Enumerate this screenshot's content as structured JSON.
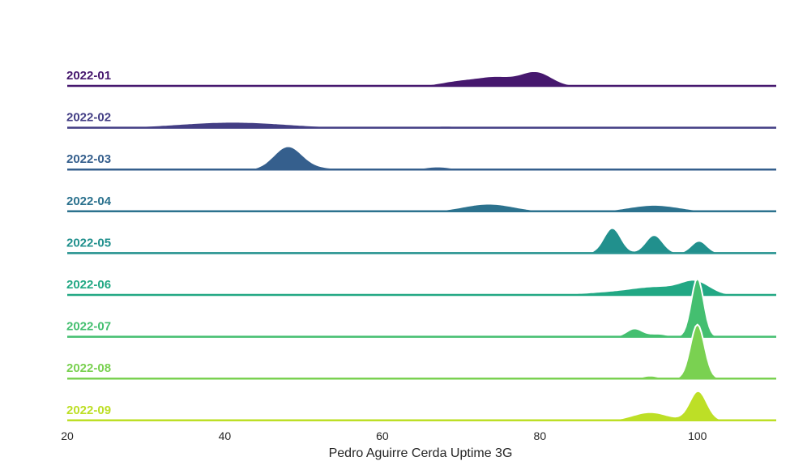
{
  "chart_data": {
    "type": "area",
    "subtype": "ridgeline",
    "xlabel": "Pedro Aguirre Cerda Uptime 3G",
    "xlim": [
      20,
      110
    ],
    "x_ticks": [
      20,
      40,
      60,
      80,
      100
    ],
    "grid": false,
    "series": [
      {
        "name": "2022-01",
        "color": "#46186e",
        "peaks": [
          {
            "x": 70,
            "height": 0.18,
            "width": 2.5
          },
          {
            "x": 74.5,
            "height": 0.28,
            "width": 2.2
          },
          {
            "x": 79.5,
            "height": 0.48,
            "width": 2.0
          },
          {
            "x": 95,
            "height": 0.03,
            "width": 1.5
          }
        ]
      },
      {
        "name": "2022-02",
        "color": "#433e85",
        "peaks": [
          {
            "x": 41,
            "height": 0.2,
            "width": 7.0
          },
          {
            "x": 68,
            "height": 0.06,
            "width": 5.0
          }
        ]
      },
      {
        "name": "2022-03",
        "color": "#355f8d",
        "peaks": [
          {
            "x": 48,
            "height": 0.78,
            "width": 1.8
          },
          {
            "x": 52,
            "height": 0.06,
            "width": 2.5
          },
          {
            "x": 67,
            "height": 0.1,
            "width": 1.8
          }
        ]
      },
      {
        "name": "2022-04",
        "color": "#2c728e",
        "peaks": [
          {
            "x": 73.5,
            "height": 0.26,
            "width": 3.2
          },
          {
            "x": 94.5,
            "height": 0.22,
            "width": 3.2
          }
        ]
      },
      {
        "name": "2022-05",
        "color": "#21908d",
        "peaks": [
          {
            "x": 89.2,
            "height": 0.86,
            "width": 1.1
          },
          {
            "x": 94.5,
            "height": 0.62,
            "width": 1.1
          },
          {
            "x": 100.2,
            "height": 0.42,
            "width": 1.0
          }
        ]
      },
      {
        "name": "2022-06",
        "color": "#22a884",
        "peaks": [
          {
            "x": 88,
            "height": 0.08,
            "width": 3.5
          },
          {
            "x": 95,
            "height": 0.28,
            "width": 3.5
          },
          {
            "x": 99.8,
            "height": 0.4,
            "width": 1.8
          }
        ]
      },
      {
        "name": "2022-07",
        "color": "#44bf70",
        "peaks": [
          {
            "x": 92,
            "height": 0.28,
            "width": 1.0
          },
          {
            "x": 95,
            "height": 0.1,
            "width": 1.2
          },
          {
            "x": 100,
            "height": 2.0,
            "width": 0.8
          }
        ]
      },
      {
        "name": "2022-08",
        "color": "#7ad151",
        "peaks": [
          {
            "x": 87,
            "height": 0.03,
            "width": 2.0
          },
          {
            "x": 94,
            "height": 0.1,
            "width": 1.0
          },
          {
            "x": 100,
            "height": 1.85,
            "width": 0.9
          }
        ]
      },
      {
        "name": "2022-09",
        "color": "#bddf26",
        "peaks": [
          {
            "x": 86,
            "height": 0.06,
            "width": 1.3
          },
          {
            "x": 94,
            "height": 0.28,
            "width": 2.2
          },
          {
            "x": 100.1,
            "height": 1.0,
            "width": 1.1
          }
        ]
      }
    ]
  }
}
